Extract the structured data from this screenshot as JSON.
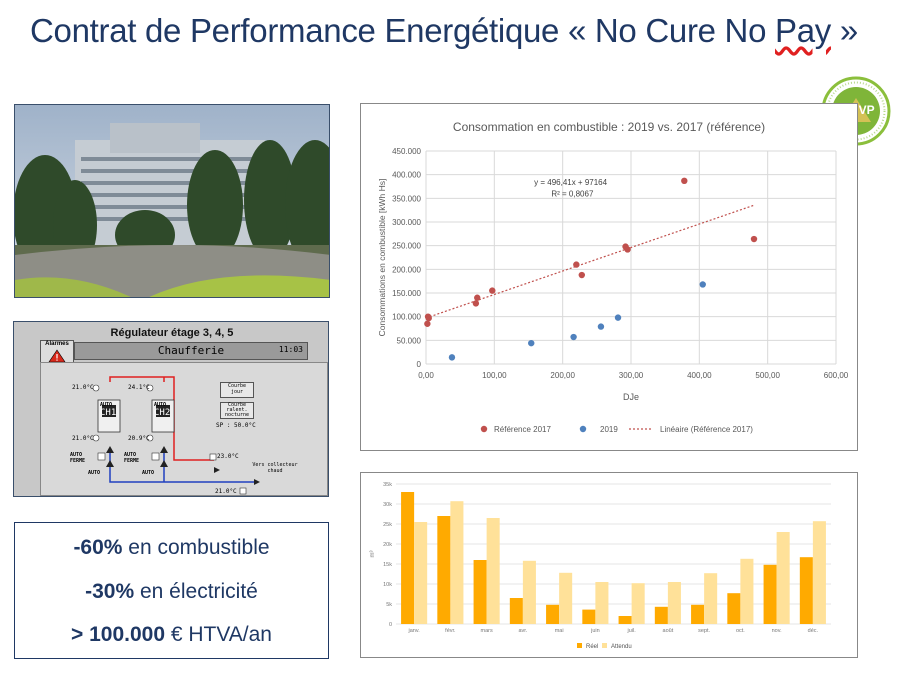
{
  "slide": {
    "title_main": "Contrat de Performance Energétique « No Cure No ",
    "title_err": "Pay",
    "title_end": " »",
    "logo_text": "IPMVP"
  },
  "results": [
    {
      "bold": "-60%",
      "rest": " en combustible"
    },
    {
      "bold": "-30%",
      "rest": " en électricité"
    },
    {
      "bold": "> 100.000",
      "rest": " € HTVA/an"
    }
  ],
  "scada": {
    "title": "Régulateur étage 3, 4, 5",
    "alarm_label": "Alarmes",
    "header": "Chaufferie",
    "time": "11:03",
    "boiler1": "CH1",
    "boiler2": "CH2",
    "auto": "AUTO",
    "auto_ferme": "AUTO FERME",
    "temps": {
      "t1": "21.0°C",
      "t2": "24.1°C",
      "t3": "21.0°C",
      "t4": "20.9°C",
      "t5": "23.0°C",
      "t6": "21.0°C"
    },
    "btn_day": "Courbe jour",
    "btn_night": "Courbe ralent. nocturne",
    "setpoint": "SP : 50.0°C",
    "collector": "Vers collecteur chaud"
  },
  "chart_data": [
    {
      "type": "scatter",
      "title": "Consommation en combustible : 2019 vs. 2017 (référence)",
      "xlabel": "DJe",
      "ylabel": "Consommations en combustible [kWh Hs]",
      "xlim": [
        0,
        600
      ],
      "ylim": [
        0,
        450000
      ],
      "x_ticks": [
        "0,00",
        "100,00",
        "200,00",
        "300,00",
        "400,00",
        "500,00",
        "600,00"
      ],
      "y_ticks": [
        "0",
        "50.000",
        "100.000",
        "150.000",
        "200.000",
        "250.000",
        "300.000",
        "350.000",
        "400.000",
        "450.000"
      ],
      "grid": true,
      "legend_position": "bottom",
      "series": [
        {
          "name": "Référence 2017",
          "color": "#c0504d",
          "points": [
            [
              2,
              85000
            ],
            [
              3,
              100000
            ],
            [
              4,
              97000
            ],
            [
              73,
              128000
            ],
            [
              75,
              140000
            ],
            [
              97,
              155000
            ],
            [
              220,
              210000
            ],
            [
              228,
              188000
            ],
            [
              292,
              248000
            ],
            [
              295,
              242000
            ],
            [
              378,
              387000
            ],
            [
              480,
              264000
            ]
          ]
        },
        {
          "name": "2019",
          "color": "#4f81bd",
          "points": [
            [
              38,
              14000
            ],
            [
              154,
              44000
            ],
            [
              216,
              57000
            ],
            [
              256,
              79000
            ],
            [
              281,
              98000
            ],
            [
              405,
              168000
            ]
          ]
        }
      ],
      "trendline": {
        "name": "Linéaire (Référence 2017)",
        "color": "#c0504d",
        "x_range": [
          0,
          480
        ],
        "equation": "y = 496,41x + 97164",
        "r2": "R² = 0,8067",
        "slope": 496.41,
        "intercept": 97164
      }
    },
    {
      "type": "bar",
      "ylabel": "m³",
      "categories": [
        "janv.",
        "févr.",
        "mars",
        "avr.",
        "mai",
        "juin",
        "juil.",
        "août",
        "sept.",
        "oct.",
        "nov.",
        "déc."
      ],
      "ylim": [
        0,
        35000
      ],
      "y_ticks": [
        "0",
        "5k",
        "10k",
        "15k",
        "20k",
        "25k",
        "30k",
        "35k"
      ],
      "legend_position": "bottom",
      "series": [
        {
          "name": "Réel",
          "color": "#ffaa00",
          "values": [
            33000,
            27000,
            16000,
            6500,
            4800,
            3600,
            2000,
            4300,
            4800,
            7700,
            14800,
            16700
          ]
        },
        {
          "name": "Attendu",
          "color": "#ffe199",
          "values": [
            25500,
            30700,
            26500,
            15800,
            12800,
            10500,
            10200,
            10500,
            12700,
            16300,
            23000,
            25700
          ]
        }
      ]
    }
  ]
}
